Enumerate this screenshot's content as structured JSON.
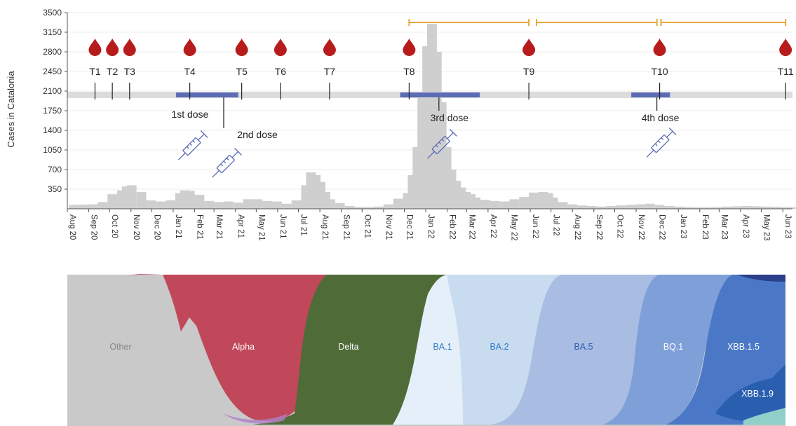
{
  "chart_data": [
    {
      "type": "bar",
      "ylabel": "Cases in Catalonia",
      "ylim": [
        0,
        3500
      ],
      "yticks": [
        350,
        700,
        1050,
        1400,
        1750,
        2100,
        2450,
        2800,
        3150,
        3500
      ],
      "xlim": [
        "2020-08-01",
        "2023-06-15"
      ],
      "x_tick_labels": [
        "Aug 20",
        "Sep 20",
        "Oct 20",
        "Nov 20",
        "Dec 20",
        "Jan 21",
        "Feb 21",
        "Mar 21",
        "Apr 21",
        "May 21",
        "Jun 21",
        "Jul 21",
        "Aug 21",
        "Sep 21",
        "Oct 21",
        "Nov 21",
        "Dec 21",
        "Jan 22",
        "Feb 22",
        "Mar 22",
        "Apr 22",
        "May 22",
        "Jun 22",
        "Jul 22",
        "Aug 22",
        "Sep 22",
        "Oct 22",
        "Nov 22",
        "Dec 22",
        "Jan 23",
        "Feb 23",
        "Mar 23",
        "Apr 23",
        "May 23",
        "Jun 23"
      ],
      "grid": true,
      "bar_color": "#cfcfcf",
      "series": [
        {
          "x": [
            "2020-08-03",
            "2020-08-17",
            "2020-08-31",
            "2020-09-14",
            "2020-09-28",
            "2020-10-12",
            "2020-10-19",
            "2020-10-26",
            "2020-11-09",
            "2020-11-23",
            "2020-12-07",
            "2020-12-21",
            "2021-01-04",
            "2021-01-11",
            "2021-01-18",
            "2021-02-01",
            "2021-02-15",
            "2021-03-01",
            "2021-03-15",
            "2021-03-29",
            "2021-04-12",
            "2021-04-26",
            "2021-05-10",
            "2021-05-24",
            "2021-06-07",
            "2021-06-21",
            "2021-07-05",
            "2021-07-12",
            "2021-07-19",
            "2021-07-26",
            "2021-08-02",
            "2021-08-09",
            "2021-08-23",
            "2021-09-06",
            "2021-09-20",
            "2021-10-04",
            "2021-10-18",
            "2021-11-01",
            "2021-11-15",
            "2021-11-29",
            "2021-12-06",
            "2021-12-13",
            "2021-12-20",
            "2021-12-27",
            "2022-01-03",
            "2022-01-10",
            "2022-01-17",
            "2022-01-24",
            "2022-01-31",
            "2022-02-07",
            "2022-02-14",
            "2022-02-21",
            "2022-02-28",
            "2022-03-07",
            "2022-03-21",
            "2022-04-04",
            "2022-04-18",
            "2022-05-02",
            "2022-05-16",
            "2022-05-30",
            "2022-06-13",
            "2022-06-20",
            "2022-06-27",
            "2022-07-11",
            "2022-07-25",
            "2022-08-08",
            "2022-08-22",
            "2022-09-05",
            "2022-09-19",
            "2022-10-03",
            "2022-10-17",
            "2022-10-31",
            "2022-11-14",
            "2022-11-28",
            "2022-12-12",
            "2022-12-26",
            "2023-01-09",
            "2023-01-23",
            "2023-02-06",
            "2023-02-20",
            "2023-03-06",
            "2023-03-20",
            "2023-04-03",
            "2023-04-17",
            "2023-05-01",
            "2023-05-15",
            "2023-05-29",
            "2023-06-12"
          ],
          "y": [
            70,
            75,
            80,
            120,
            260,
            330,
            400,
            420,
            300,
            150,
            130,
            150,
            280,
            330,
            320,
            250,
            140,
            120,
            130,
            110,
            170,
            170,
            140,
            130,
            90,
            150,
            420,
            650,
            600,
            480,
            300,
            170,
            100,
            50,
            30,
            30,
            40,
            80,
            180,
            280,
            600,
            1100,
            2000,
            2900,
            3300,
            2800,
            1900,
            1100,
            700,
            500,
            380,
            300,
            260,
            200,
            160,
            140,
            130,
            170,
            210,
            290,
            300,
            280,
            200,
            120,
            80,
            60,
            50,
            40,
            50,
            60,
            70,
            80,
            90,
            70,
            50,
            40,
            30,
            25,
            25,
            30,
            40,
            45,
            50,
            45,
            40,
            35,
            30,
            25
          ]
        }
      ],
      "timepoints": [
        {
          "label": "T1",
          "date": "2020-09-10"
        },
        {
          "label": "T2",
          "date": "2020-10-05"
        },
        {
          "label": "T3",
          "date": "2020-10-30"
        },
        {
          "label": "T4",
          "date": "2021-01-25"
        },
        {
          "label": "T5",
          "date": "2021-04-10"
        },
        {
          "label": "T6",
          "date": "2021-06-05"
        },
        {
          "label": "T7",
          "date": "2021-08-15"
        },
        {
          "label": "T8",
          "date": "2021-12-08"
        },
        {
          "label": "T9",
          "date": "2022-05-30"
        },
        {
          "label": "T10",
          "date": "2022-12-05"
        },
        {
          "label": "T11",
          "date": "2023-06-05"
        }
      ],
      "vaccine_doses": [
        {
          "label": "1st dose",
          "start": "2021-01-05",
          "end": "2021-02-01"
        },
        {
          "label": "2nd dose",
          "start": "2021-02-01",
          "end": "2021-04-05",
          "marker": "2021-03-15"
        },
        {
          "label": "3rd dose",
          "start": "2021-11-25",
          "end": "2022-03-20",
          "marker": "2022-01-20"
        },
        {
          "label": "4th dose",
          "start": "2022-10-25",
          "end": "2022-12-20",
          "marker": "2022-12-01"
        }
      ],
      "follow_up_intervals": [
        {
          "start": "2021-12-08",
          "end": "2022-05-30"
        },
        {
          "start": "2022-06-10",
          "end": "2022-12-01"
        },
        {
          "start": "2022-12-07",
          "end": "2023-06-05"
        }
      ],
      "colors": {
        "drop": "#b71c1c",
        "dose_bar": "#5b6bb5",
        "interval": "#e6a83a",
        "syringe": "#5b6bb5",
        "timeline": "#dcdcdc"
      }
    },
    {
      "type": "area",
      "stacked": true,
      "normalized": true,
      "variants": [
        {
          "name": "Other",
          "color": "#c9c9c9",
          "label_color": "#888888"
        },
        {
          "name": "Alpha",
          "color": "#c0485a",
          "label_color": "#ffffff"
        },
        {
          "name": "Delta",
          "color": "#4f6b38",
          "label_color": "#ffffff"
        },
        {
          "name": "BA.1",
          "color": "#e4eff9",
          "label_color": "#2f78c4"
        },
        {
          "name": "BA.2",
          "color": "#c9dcef",
          "label_color": "#2f78c4"
        },
        {
          "name": "BA.5",
          "color": "#a9bde3",
          "label_color": "#2f5db0"
        },
        {
          "name": "BQ.1",
          "color": "#7f9fd9",
          "label_color": "#ffffff"
        },
        {
          "name": "XBB.1.5",
          "color": "#4a78c6",
          "label_color": "#ffffff"
        },
        {
          "name": "XBB.1.9",
          "color": "#2a5fb0",
          "label_color": "#ffffff"
        }
      ]
    }
  ]
}
